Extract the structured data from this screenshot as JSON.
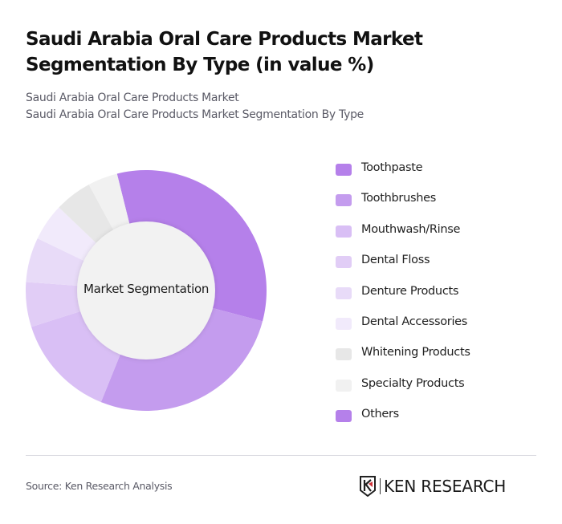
{
  "header": {
    "title": "Saudi Arabia Oral Care Products Market Segmentation By Type (in value %)",
    "subtitle_line1": "Saudi Arabia Oral Care Products Market",
    "subtitle_line2": "Saudi Arabia Oral Care Products Market Segmentation By Type"
  },
  "chart": {
    "center_label": "Market Segmentation"
  },
  "legend": {
    "items": [
      {
        "label": "Toothpaste",
        "color": "#b580ea"
      },
      {
        "label": "Toothbrushes",
        "color": "#c49cee"
      },
      {
        "label": "Mouthwash/Rinse",
        "color": "#d9bff5"
      },
      {
        "label": "Dental Floss",
        "color": "#e1cdf6"
      },
      {
        "label": "Denture Products",
        "color": "#e8dbf8"
      },
      {
        "label": "Dental Accessories",
        "color": "#f1eafb"
      },
      {
        "label": "Whitening Products",
        "color": "#e7e7e7"
      },
      {
        "label": "Specialty Products",
        "color": "#f1f1f1"
      },
      {
        "label": "Others",
        "color": "#b580ea"
      }
    ]
  },
  "footer": {
    "source": "Source: Ken Research Analysis",
    "logo_text": "KEN RESEARCH"
  },
  "chart_data": {
    "type": "pie",
    "variant": "donut",
    "title": "Saudi Arabia Oral Care Products Market Segmentation By Type (in value %)",
    "center_label": "Market Segmentation",
    "categories": [
      "Toothpaste",
      "Toothbrushes",
      "Mouthwash/Rinse",
      "Dental Floss",
      "Denture Products",
      "Dental Accessories",
      "Whitening Products",
      "Specialty Products",
      "Others"
    ],
    "values": [
      33,
      27,
      14,
      6,
      6,
      5,
      5,
      4,
      0
    ],
    "colors": [
      "#b580ea",
      "#c49cee",
      "#d9bff5",
      "#e1cdf6",
      "#e8dbf8",
      "#f1eafb",
      "#e7e7e7",
      "#f1f1f1",
      "#b580ea"
    ],
    "start_angle_deg": -14,
    "legend_position": "right",
    "unit": "%"
  }
}
